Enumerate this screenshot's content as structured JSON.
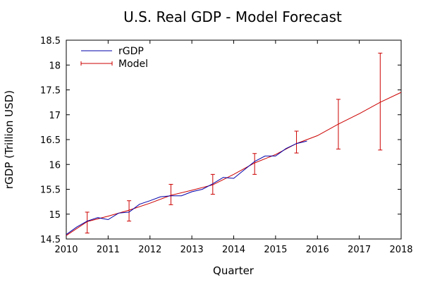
{
  "chart_data": {
    "type": "line",
    "title": "U.S. Real GDP - Model Forecast",
    "xlabel": "Quarter",
    "ylabel": "rGDP (Trillion USD)",
    "xlim": [
      2010,
      2018
    ],
    "ylim": [
      14.5,
      18.5
    ],
    "xticks": [
      2010,
      2011,
      2012,
      2013,
      2014,
      2015,
      2016,
      2017,
      2018
    ],
    "yticks": [
      14.5,
      15,
      15.5,
      16,
      16.5,
      17,
      17.5,
      18,
      18.5
    ],
    "grid": false,
    "legend_position": "top-left",
    "series": [
      {
        "name": "rGDP",
        "color": "#0000aa",
        "x": [
          2010.0,
          2010.25,
          2010.5,
          2010.75,
          2011.0,
          2011.25,
          2011.5,
          2011.75,
          2012.0,
          2012.25,
          2012.5,
          2012.75,
          2013.0,
          2013.25,
          2013.5,
          2013.75,
          2014.0,
          2014.25,
          2014.5,
          2014.75,
          2015.0,
          2015.25,
          2015.5,
          2015.75
        ],
        "y": [
          14.59,
          14.74,
          14.86,
          14.93,
          14.89,
          15.02,
          15.04,
          15.2,
          15.27,
          15.35,
          15.37,
          15.37,
          15.45,
          15.5,
          15.61,
          15.74,
          15.72,
          15.89,
          16.06,
          16.17,
          16.17,
          16.32,
          16.42,
          16.47
        ]
      },
      {
        "name": "Model",
        "color": "#cc0000",
        "x": [
          2010.0,
          2010.5,
          2011.0,
          2011.5,
          2012.0,
          2012.5,
          2013.0,
          2013.5,
          2014.0,
          2014.5,
          2015.0,
          2015.5,
          2016.0,
          2016.5,
          2017.0,
          2017.5,
          2018.0
        ],
        "y": [
          14.57,
          14.85,
          14.96,
          15.08,
          15.22,
          15.38,
          15.48,
          15.59,
          15.8,
          16.03,
          16.2,
          16.42,
          16.58,
          16.81,
          17.02,
          17.25,
          17.45
        ],
        "errorbars": [
          {
            "x": 2010.5,
            "low": 14.62,
            "high": 15.04
          },
          {
            "x": 2011.5,
            "low": 14.86,
            "high": 15.27
          },
          {
            "x": 2012.5,
            "low": 15.19,
            "high": 15.6
          },
          {
            "x": 2013.5,
            "low": 15.4,
            "high": 15.8
          },
          {
            "x": 2014.5,
            "low": 15.8,
            "high": 16.22
          },
          {
            "x": 2015.5,
            "low": 16.23,
            "high": 16.67
          },
          {
            "x": 2016.5,
            "low": 16.31,
            "high": 17.31
          },
          {
            "x": 2017.5,
            "low": 16.29,
            "high": 18.24
          }
        ]
      }
    ]
  }
}
